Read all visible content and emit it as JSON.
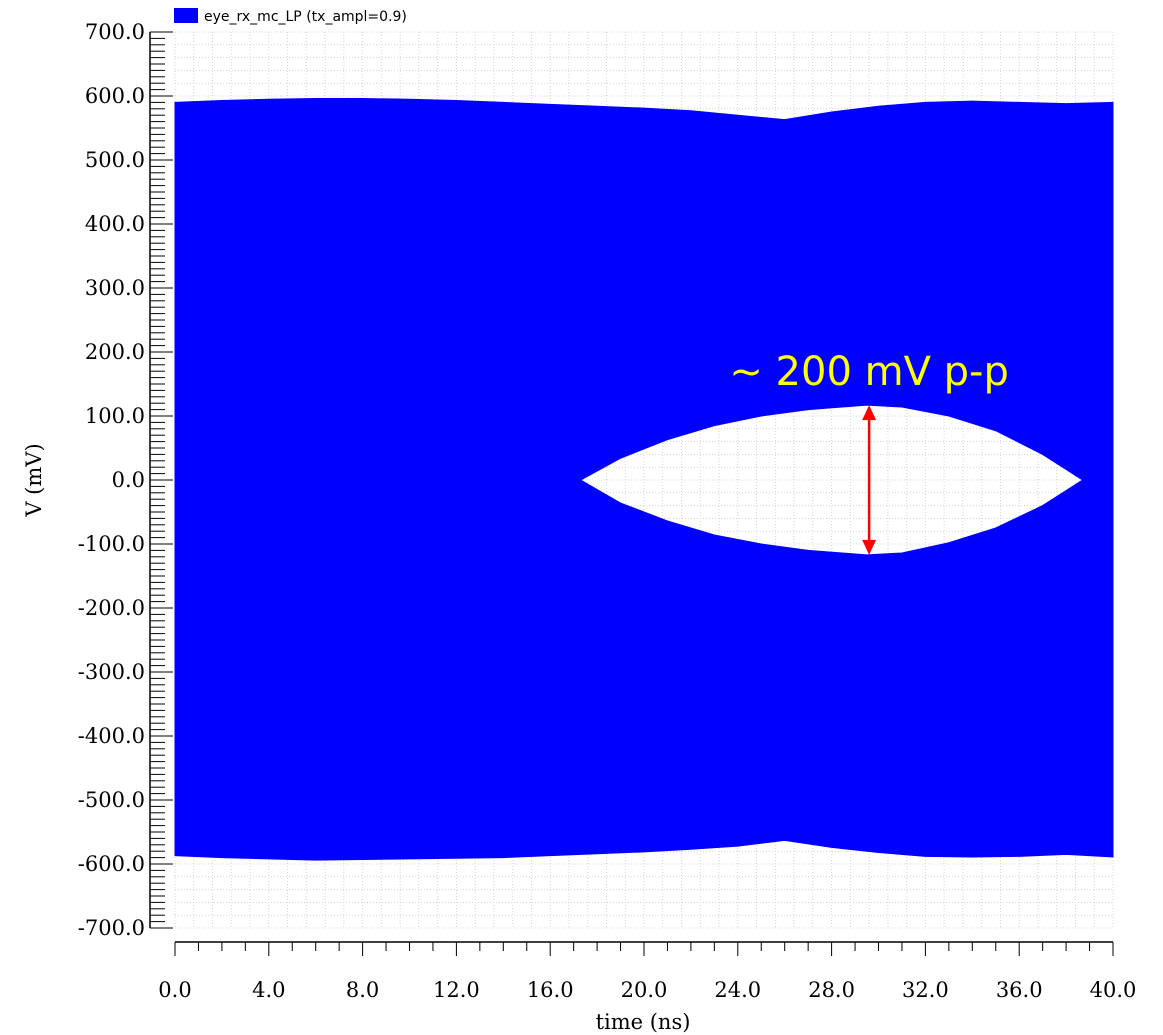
{
  "chart_data": {
    "type": "area",
    "title": "",
    "xlabel": "time (ns)",
    "ylabel": "V (mV)",
    "xlim": [
      0,
      40
    ],
    "ylim": [
      -700,
      700
    ],
    "x_ticks": [
      "0.0",
      "4.0",
      "8.0",
      "12.0",
      "16.0",
      "20.0",
      "24.0",
      "28.0",
      "32.0",
      "36.0",
      "40.0"
    ],
    "y_ticks": [
      "700.0",
      "600.0",
      "500.0",
      "400.0",
      "300.0",
      "200.0",
      "100.0",
      "0.0",
      "-100.0",
      "-200.0",
      "-300.0",
      "-400.0",
      "-500.0",
      "-600.0",
      "-700.0"
    ],
    "grid": true,
    "legend": {
      "placement": "top-left",
      "label": "eye_rx_mc_LP (tx_ampl=0.9)",
      "color": "#0000FF"
    },
    "series": [
      {
        "name": "eye_rx_mc_LP (tx_ampl=0.9)",
        "color": "#0000FF",
        "upper_envelope": {
          "x": [
            0,
            2,
            4,
            6,
            8,
            10,
            12,
            14,
            16,
            18,
            20,
            22,
            24,
            26,
            28,
            30,
            32,
            34,
            36,
            38,
            40
          ],
          "y": [
            590,
            593,
            595,
            596,
            596,
            595,
            593,
            590,
            587,
            584,
            581,
            577,
            570,
            563,
            575,
            584,
            590,
            592,
            590,
            588,
            590
          ]
        },
        "lower_envelope": {
          "x": [
            0,
            2,
            4,
            6,
            8,
            10,
            12,
            14,
            16,
            18,
            20,
            22,
            24,
            26,
            28,
            30,
            32,
            34,
            36,
            38,
            40
          ],
          "y": [
            -587,
            -590,
            -592,
            -594,
            -593,
            -592,
            -591,
            -590,
            -587,
            -584,
            -581,
            -577,
            -572,
            -563,
            -574,
            -582,
            -588,
            -589,
            -588,
            -585,
            -589
          ]
        },
        "eye_opening": {
          "x": [
            17.3,
            19,
            21,
            23,
            25,
            27,
            29.5,
            31,
            33,
            35,
            37,
            38.7
          ],
          "upper": [
            0,
            34,
            63,
            85,
            100,
            110,
            117,
            114,
            100,
            77,
            40,
            0
          ],
          "lower": [
            0,
            -36,
            -64,
            -86,
            -100,
            -110,
            -117,
            -114,
            -98,
            -75,
            -40,
            0
          ]
        }
      }
    ],
    "annotations": [
      {
        "text": "~ 200 mV p-p",
        "x": 29.6,
        "y": 170,
        "color": "#FFFF00"
      },
      {
        "type": "double-arrow",
        "x": 29.6,
        "y_from": -117,
        "y_to": 117,
        "color": "#FF0000"
      }
    ]
  }
}
